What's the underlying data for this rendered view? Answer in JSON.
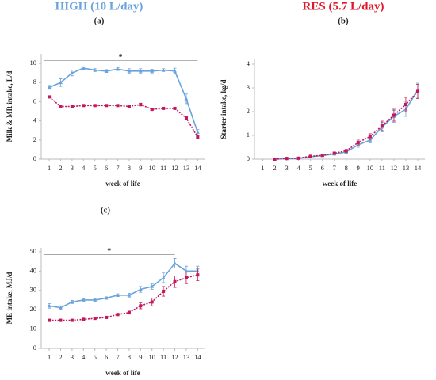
{
  "chart_data": [
    {
      "type": "line",
      "title": "(a)",
      "x_label": "week of life",
      "y_label": "Milk & MR intake, L/d",
      "x": [
        1,
        2,
        3,
        4,
        5,
        6,
        7,
        8,
        9,
        10,
        11,
        12,
        13,
        14
      ],
      "xlim": [
        0.3,
        14.6
      ],
      "xticks": [
        1,
        2,
        3,
        4,
        5,
        6,
        7,
        8,
        9,
        10,
        11,
        12,
        13,
        14
      ],
      "ylim": [
        0,
        11
      ],
      "yticks": [
        0,
        2,
        4,
        6,
        8,
        10
      ],
      "series": [
        {
          "name": "HIGH (10 L/day)",
          "color": "#6aa3dc",
          "marker": "triangle",
          "linestyle": "solid",
          "values": [
            7.5,
            8.0,
            9.0,
            9.5,
            9.3,
            9.2,
            9.4,
            9.2,
            9.2,
            9.2,
            9.3,
            9.2,
            6.3,
            2.8
          ],
          "errors": [
            0.2,
            0.4,
            0.3,
            0.15,
            0.15,
            0.15,
            0.15,
            0.25,
            0.25,
            0.2,
            0.15,
            0.3,
            0.5,
            0.3
          ]
        },
        {
          "name": "RES (5.7 L/day)",
          "color": "#c2185b",
          "marker": "square",
          "linestyle": "dotted",
          "values": [
            6.5,
            5.5,
            5.5,
            5.6,
            5.6,
            5.6,
            5.6,
            5.5,
            5.7,
            5.2,
            5.3,
            5.3,
            4.3,
            2.3
          ],
          "errors": [
            0.1,
            0.1,
            0.1,
            0.1,
            0.1,
            0.1,
            0.1,
            0.1,
            0.15,
            0.1,
            0.1,
            0.1,
            0.1,
            0.15
          ]
        }
      ],
      "annotation": {
        "text": "*",
        "y": 10.3,
        "x": [
          0.5,
          14
        ]
      }
    },
    {
      "type": "line",
      "title": "(b)",
      "x_label": "week of life",
      "y_label": "Starter intake, kg/d",
      "x": [
        1,
        2,
        3,
        4,
        5,
        6,
        7,
        8,
        9,
        10,
        11,
        12,
        13,
        14
      ],
      "xlim": [
        0.3,
        14.6
      ],
      "xticks": [
        1,
        2,
        3,
        4,
        5,
        6,
        7,
        8,
        9,
        10,
        11,
        12,
        13,
        14
      ],
      "ylim": [
        0,
        4.2
      ],
      "yticks": [
        0,
        1,
        2,
        3,
        4
      ],
      "series": [
        {
          "color": "#6aa3dc",
          "marker": "triangle",
          "linestyle": "solid",
          "values": [
            null,
            0,
            0.02,
            0.03,
            0.1,
            0.15,
            0.22,
            0.3,
            0.6,
            0.8,
            1.35,
            1.8,
            2.1,
            2.9
          ],
          "errors": [
            null,
            0.01,
            0.01,
            0.02,
            0.03,
            0.03,
            0.05,
            0.06,
            0.1,
            0.12,
            0.2,
            0.25,
            0.3,
            0.3
          ]
        },
        {
          "color": "#c2185b",
          "marker": "square",
          "linestyle": "dotted",
          "values": [
            null,
            0,
            0.03,
            0.04,
            0.12,
            0.16,
            0.25,
            0.35,
            0.7,
            0.95,
            1.4,
            1.85,
            2.3,
            2.85
          ],
          "errors": [
            null,
            0.01,
            0.01,
            0.02,
            0.03,
            0.03,
            0.05,
            0.06,
            0.1,
            0.12,
            0.2,
            0.25,
            0.3,
            0.3
          ]
        }
      ]
    },
    {
      "type": "line",
      "title": "(c)",
      "x_label": "week of life",
      "y_label": "ME intake, MJ/d",
      "x": [
        1,
        2,
        3,
        4,
        5,
        6,
        7,
        8,
        9,
        10,
        11,
        12,
        13,
        14
      ],
      "xlim": [
        0.3,
        14.6
      ],
      "xticks": [
        1,
        2,
        3,
        4,
        5,
        6,
        7,
        8,
        9,
        10,
        11,
        12,
        13,
        14
      ],
      "ylim": [
        0,
        52
      ],
      "yticks": [
        0,
        10,
        20,
        30,
        40,
        50
      ],
      "series": [
        {
          "color": "#6aa3dc",
          "marker": "triangle",
          "linestyle": "solid",
          "values": [
            22,
            21,
            24,
            25,
            25,
            26,
            27.5,
            27.5,
            30.5,
            32,
            36.5,
            44,
            40,
            40
          ],
          "errors": [
            1.2,
            1,
            0.8,
            0.6,
            0.6,
            0.6,
            0.7,
            1,
            1.5,
            1.5,
            2.5,
            2.5,
            2.5,
            2.5
          ]
        },
        {
          "color": "#c2185b",
          "marker": "square",
          "linestyle": "dotted",
          "values": [
            14.5,
            14.5,
            14.5,
            15,
            15.5,
            16,
            17.5,
            18.5,
            22,
            24,
            29.5,
            34.5,
            36.5,
            38
          ],
          "errors": [
            0.5,
            0.4,
            0.4,
            0.4,
            0.5,
            0.6,
            0.6,
            0.8,
            1.5,
            2,
            2.5,
            3,
            3,
            3
          ]
        }
      ],
      "annotation": {
        "text": "*",
        "y": 48.5,
        "x": [
          0.5,
          12
        ]
      }
    }
  ]
}
